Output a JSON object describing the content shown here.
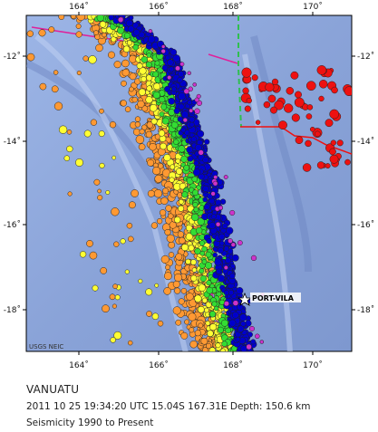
{
  "map": {
    "lon_ticks": [
      "164˚",
      "166˚",
      "168˚",
      "170˚"
    ],
    "lat_ticks": [
      "-12˚",
      "-14˚",
      "-16˚",
      "-18˚"
    ],
    "city_label": "PORT-VILA",
    "credit": "USGS NEIC",
    "colors": {
      "ocean": "#8fa8dc",
      "land": "#ffffff",
      "plate_boundary": "#e0209a",
      "border_dashed": "#2fbf4f",
      "event_box": "#ff0000",
      "depth_shallow": "#ff9933",
      "depth_mid": "#ffff33",
      "depth_intermediate": "#33dd33",
      "depth_deep": "#0000cc",
      "depth_very_deep": "#cc33cc",
      "depth_deepest": "#ee1111"
    }
  },
  "caption": {
    "title": "VANUATU",
    "event": "2011 10 25 19:34:20 UTC 15.04S 167.31E Depth: 150.6 km",
    "range": "Seismicity 1990 to Present"
  }
}
